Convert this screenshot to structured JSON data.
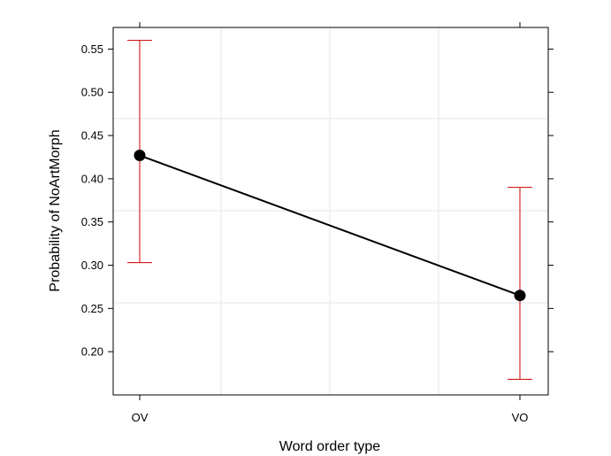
{
  "chart_data": {
    "type": "line",
    "xlabel": "Word order type",
    "ylabel": "Probability of NoArtMorph",
    "categories": [
      "OV",
      "VO"
    ],
    "series": [
      {
        "values": [
          0.427,
          0.265
        ],
        "lower": [
          0.303,
          0.168
        ],
        "upper": [
          0.56,
          0.39
        ]
      }
    ],
    "yticks": [
      "0.20",
      "0.25",
      "0.30",
      "0.35",
      "0.40",
      "0.45",
      "0.50",
      "0.55"
    ],
    "ylim": [
      0.15,
      0.575
    ],
    "grid": true,
    "colors": {
      "line": "#000000",
      "point": "#000000",
      "errorbar": "#cc0000",
      "grid": "#e6e6e6",
      "frame": "#000000"
    }
  }
}
